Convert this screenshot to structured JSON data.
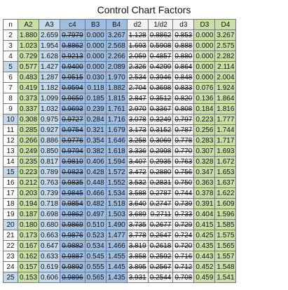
{
  "title": "Control Chart Factors",
  "table": {
    "header": [
      "n",
      "A2",
      "A3",
      "c4",
      "B3",
      "B4",
      "d2",
      "1/d2",
      "d3",
      "D3",
      "D4"
    ],
    "rows": [
      [
        "2",
        "1.880",
        "2.659",
        "0.7979",
        "0.000",
        "3.267",
        "1.128",
        "0.8862",
        "0.853",
        "0.000",
        "3.267"
      ],
      [
        "3",
        "1.023",
        "1.954",
        "0.8862",
        "0.000",
        "2.568",
        "1.693",
        "0.5908",
        "0.888",
        "0.000",
        "2.575"
      ],
      [
        "4",
        "0.729",
        "1.628",
        "0.9213",
        "0.000",
        "2.266",
        "2.059",
        "0.4857",
        "0.880",
        "0.000",
        "2.282"
      ],
      [
        "5",
        "0.577",
        "1.427",
        "0.9400",
        "0.000",
        "2.089",
        "2.326",
        "0.4299",
        "0.864",
        "0.000",
        "2.114"
      ],
      [
        "6",
        "0.483",
        "1.287",
        "0.9515",
        "0.030",
        "1.970",
        "2.534",
        "0.3946",
        "0.848",
        "0.000",
        "2.004"
      ],
      [
        "7",
        "0.419",
        "1.182",
        "0.9594",
        "0.118",
        "1.882",
        "2.704",
        "0.3698",
        "0.833",
        "0.076",
        "1.924"
      ],
      [
        "8",
        "0.373",
        "1.099",
        "0.9650",
        "0.185",
        "1.815",
        "2.847",
        "0.3512",
        "0.820",
        "0.136",
        "1.864"
      ],
      [
        "9",
        "0.337",
        "1.032",
        "0.9693",
        "0.239",
        "1.761",
        "2.970",
        "0.3367",
        "0.808",
        "0.184",
        "1.816"
      ],
      [
        "10",
        "0.308",
        "0.975",
        "0.9727",
        "0.284",
        "1.716",
        "3.078",
        "0.3249",
        "0.797",
        "0.223",
        "1.777"
      ],
      [
        "11",
        "0.285",
        "0.927",
        "0.9754",
        "0.321",
        "1.679",
        "3.173",
        "0.3152",
        "0.787",
        "0.256",
        "1.744"
      ],
      [
        "12",
        "0.266",
        "0.886",
        "0.9776",
        "0.354",
        "1.646",
        "3.258",
        "0.3069",
        "0.778",
        "0.283",
        "1.717"
      ],
      [
        "13",
        "0.249",
        "0.850",
        "0.9794",
        "0.382",
        "1.618",
        "3.336",
        "0.2998",
        "0.770",
        "0.307",
        "1.693"
      ],
      [
        "14",
        "0.235",
        "0.817",
        "0.9810",
        "0.406",
        "1.594",
        "3.407",
        "0.2935",
        "0.763",
        "0.328",
        "1.672"
      ],
      [
        "15",
        "0.223",
        "0.789",
        "0.9823",
        "0.428",
        "1.572",
        "3.472",
        "0.2880",
        "0.756",
        "0.347",
        "1.653"
      ],
      [
        "16",
        "0.212",
        "0.763",
        "0.9835",
        "0.448",
        "1.552",
        "3.532",
        "0.2831",
        "0.750",
        "0.363",
        "1.637"
      ],
      [
        "17",
        "0.203",
        "0.739",
        "0.9845",
        "0.466",
        "1.534",
        "3.588",
        "0.2787",
        "0.744",
        "0.378",
        "1.622"
      ],
      [
        "18",
        "0.194",
        "0.718",
        "0.9854",
        "0.482",
        "1.518",
        "3.640",
        "0.2747",
        "0.739",
        "0.391",
        "1.609"
      ],
      [
        "19",
        "0.187",
        "0.698",
        "0.9862",
        "0.497",
        "1.503",
        "3.689",
        "0.2711",
        "0.733",
        "0.404",
        "1.596"
      ],
      [
        "20",
        "0.180",
        "0.680",
        "0.9869",
        "0.510",
        "1.490",
        "3.735",
        "0.2677",
        "0.729",
        "0.415",
        "1.585"
      ],
      [
        "21",
        "0.173",
        "0.663",
        "0.9876",
        "0.523",
        "1.477",
        "3.778",
        "0.2647",
        "0.724",
        "0.425",
        "1.575"
      ],
      [
        "22",
        "0.167",
        "0.647",
        "0.9882",
        "0.534",
        "1.466",
        "3.819",
        "0.2618",
        "0.720",
        "0.435",
        "1.565"
      ],
      [
        "23",
        "0.162",
        "0.633",
        "0.9887",
        "0.545",
        "1.455",
        "3.858",
        "0.2592",
        "0.716",
        "0.443",
        "1.557"
      ],
      [
        "24",
        "0.157",
        "0.619",
        "0.9892",
        "0.555",
        "1.445",
        "3.895",
        "0.2567",
        "0.712",
        "0.452",
        "1.548"
      ],
      [
        "25",
        "0.153",
        "0.606",
        "0.9896",
        "0.565",
        "1.435",
        "3.931",
        "0.2544",
        "0.708",
        "0.459",
        "1.541"
      ]
    ]
  }
}
